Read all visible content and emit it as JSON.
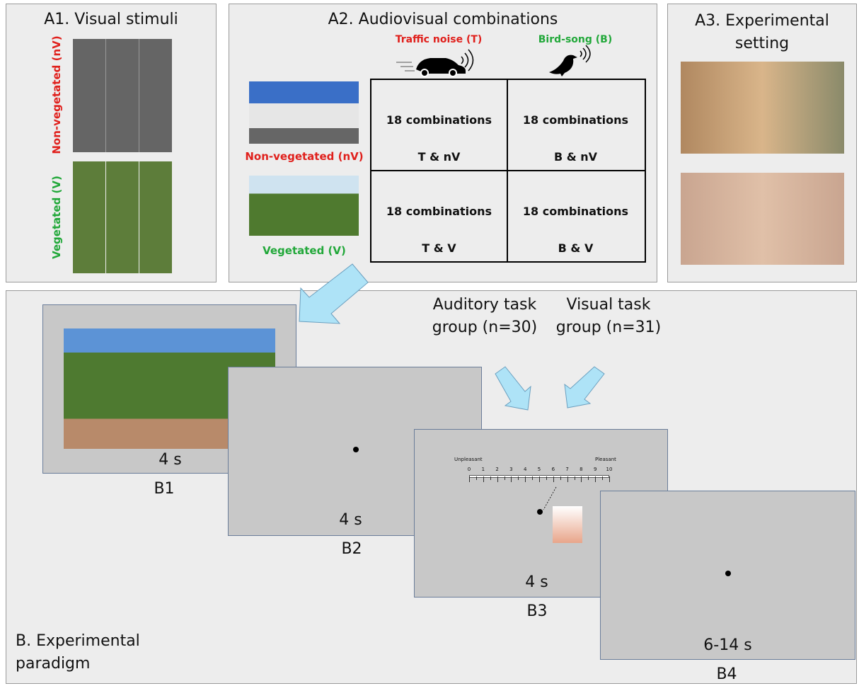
{
  "panel_a1": {
    "title": "A1. Visual stimuli",
    "label_nv": "Non-vegetated (nV)",
    "label_v": "Vegetated (V)"
  },
  "panel_a2": {
    "title": "A2. Audiovisual combinations",
    "sound_t": "Traffic noise (T)",
    "sound_b": "Bird-song (B)",
    "row_nv": "Non-vegetated (nV)",
    "row_v": "Vegetated (V)",
    "cells": [
      [
        "18 combinations",
        "T & nV"
      ],
      [
        "18 combinations",
        "B & nV"
      ],
      [
        "18 combinations",
        "T & V"
      ],
      [
        "18 combinations",
        "B & V"
      ]
    ]
  },
  "panel_a3": {
    "title": "A3. Experimental setting"
  },
  "panel_b": {
    "title": "B. Experimental paradigm",
    "group_auditory": "Auditory task group (n=30)",
    "group_visual": "Visual task group (n=31)",
    "scale": {
      "left": "Unpleasant",
      "right": "Pleasant",
      "ticks": [
        0,
        1,
        2,
        3,
        4,
        5,
        6,
        7,
        8,
        9,
        10
      ]
    },
    "screens": [
      {
        "label": "B1",
        "duration": "4 s"
      },
      {
        "label": "B2",
        "duration": "4 s"
      },
      {
        "label": "B3",
        "duration": "4 s"
      },
      {
        "label": "B4",
        "duration": "6-14 s"
      }
    ]
  }
}
